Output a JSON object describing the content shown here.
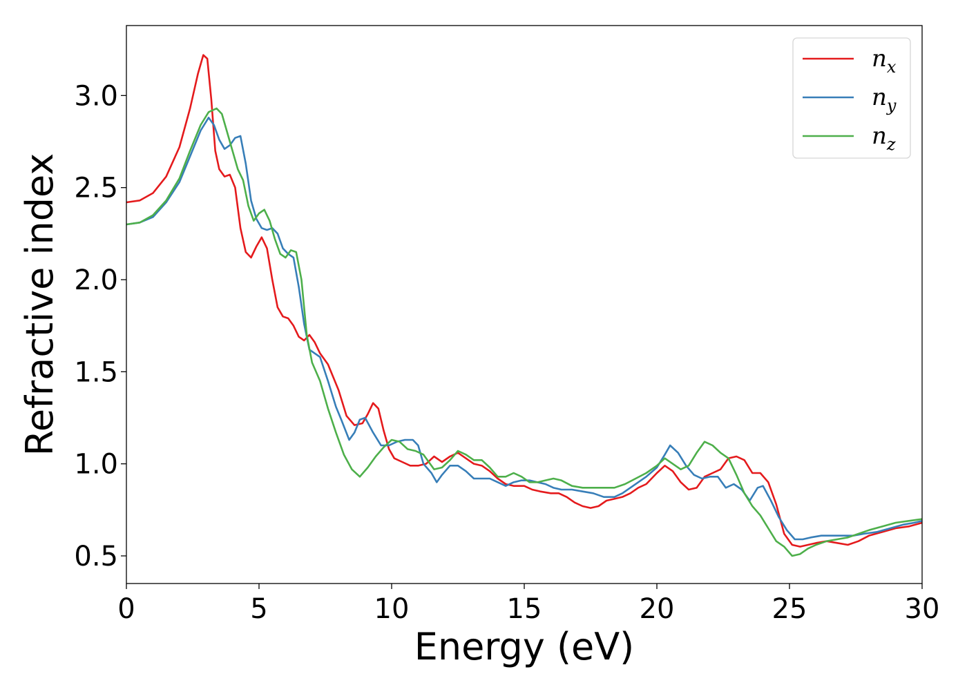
{
  "chart_data": {
    "type": "line",
    "title": "",
    "xlabel": "Energy (eV)",
    "ylabel": "Refractive index",
    "xlim": [
      0,
      30
    ],
    "ylim": [
      0.35,
      3.38
    ],
    "xticks": [
      0,
      5,
      10,
      15,
      20,
      25,
      30
    ],
    "xtick_labels": [
      "0",
      "5",
      "10",
      "15",
      "20",
      "25",
      "30"
    ],
    "yticks": [
      0.5,
      1.0,
      1.5,
      2.0,
      2.5,
      3.0
    ],
    "ytick_labels": [
      "0.5",
      "1.0",
      "1.5",
      "2.0",
      "2.5",
      "3.0"
    ],
    "grid": false,
    "legend_position": "top-right",
    "series": [
      {
        "name": "n_x",
        "label_base": "n",
        "label_sub": "x",
        "color": "#e41a1c",
        "points": [
          [
            0,
            2.42
          ],
          [
            0.5,
            2.43
          ],
          [
            1.0,
            2.47
          ],
          [
            1.5,
            2.56
          ],
          [
            2.0,
            2.72
          ],
          [
            2.4,
            2.93
          ],
          [
            2.7,
            3.12
          ],
          [
            2.9,
            3.22
          ],
          [
            3.05,
            3.2
          ],
          [
            3.2,
            2.98
          ],
          [
            3.35,
            2.7
          ],
          [
            3.5,
            2.6
          ],
          [
            3.7,
            2.56
          ],
          [
            3.9,
            2.57
          ],
          [
            4.1,
            2.5
          ],
          [
            4.3,
            2.28
          ],
          [
            4.5,
            2.15
          ],
          [
            4.7,
            2.12
          ],
          [
            4.9,
            2.18
          ],
          [
            5.1,
            2.23
          ],
          [
            5.3,
            2.17
          ],
          [
            5.5,
            2.0
          ],
          [
            5.7,
            1.85
          ],
          [
            5.9,
            1.8
          ],
          [
            6.1,
            1.79
          ],
          [
            6.3,
            1.75
          ],
          [
            6.5,
            1.69
          ],
          [
            6.7,
            1.67
          ],
          [
            6.9,
            1.7
          ],
          [
            7.1,
            1.66
          ],
          [
            7.3,
            1.6
          ],
          [
            7.6,
            1.54
          ],
          [
            8.0,
            1.4
          ],
          [
            8.3,
            1.26
          ],
          [
            8.6,
            1.21
          ],
          [
            8.9,
            1.22
          ],
          [
            9.1,
            1.27
          ],
          [
            9.3,
            1.33
          ],
          [
            9.5,
            1.3
          ],
          [
            9.7,
            1.18
          ],
          [
            9.9,
            1.08
          ],
          [
            10.1,
            1.03
          ],
          [
            10.4,
            1.01
          ],
          [
            10.7,
            0.99
          ],
          [
            11.0,
            0.99
          ],
          [
            11.3,
            1.0
          ],
          [
            11.6,
            1.04
          ],
          [
            11.9,
            1.01
          ],
          [
            12.2,
            1.04
          ],
          [
            12.5,
            1.06
          ],
          [
            12.8,
            1.03
          ],
          [
            13.1,
            1.0
          ],
          [
            13.4,
            0.99
          ],
          [
            13.7,
            0.96
          ],
          [
            14.0,
            0.92
          ],
          [
            14.3,
            0.89
          ],
          [
            14.6,
            0.88
          ],
          [
            15.0,
            0.88
          ],
          [
            15.3,
            0.86
          ],
          [
            15.6,
            0.85
          ],
          [
            16.0,
            0.84
          ],
          [
            16.3,
            0.84
          ],
          [
            16.6,
            0.82
          ],
          [
            16.9,
            0.79
          ],
          [
            17.2,
            0.77
          ],
          [
            17.5,
            0.76
          ],
          [
            17.8,
            0.77
          ],
          [
            18.1,
            0.8
          ],
          [
            18.4,
            0.81
          ],
          [
            18.7,
            0.82
          ],
          [
            19.0,
            0.84
          ],
          [
            19.3,
            0.87
          ],
          [
            19.6,
            0.89
          ],
          [
            20.0,
            0.95
          ],
          [
            20.3,
            0.99
          ],
          [
            20.6,
            0.96
          ],
          [
            20.9,
            0.9
          ],
          [
            21.2,
            0.86
          ],
          [
            21.5,
            0.87
          ],
          [
            21.8,
            0.93
          ],
          [
            22.1,
            0.95
          ],
          [
            22.4,
            0.97
          ],
          [
            22.7,
            1.03
          ],
          [
            23.0,
            1.04
          ],
          [
            23.3,
            1.02
          ],
          [
            23.6,
            0.95
          ],
          [
            23.9,
            0.95
          ],
          [
            24.2,
            0.9
          ],
          [
            24.5,
            0.78
          ],
          [
            24.8,
            0.62
          ],
          [
            25.1,
            0.56
          ],
          [
            25.4,
            0.55
          ],
          [
            25.7,
            0.56
          ],
          [
            26.0,
            0.57
          ],
          [
            26.4,
            0.58
          ],
          [
            26.8,
            0.57
          ],
          [
            27.2,
            0.56
          ],
          [
            27.6,
            0.58
          ],
          [
            28.0,
            0.61
          ],
          [
            28.5,
            0.63
          ],
          [
            29.0,
            0.65
          ],
          [
            29.5,
            0.66
          ],
          [
            30.0,
            0.68
          ]
        ]
      },
      {
        "name": "n_y",
        "label_base": "n",
        "label_sub": "y",
        "color": "#377eb8",
        "points": [
          [
            0,
            2.3
          ],
          [
            0.5,
            2.31
          ],
          [
            1.0,
            2.34
          ],
          [
            1.5,
            2.42
          ],
          [
            2.0,
            2.53
          ],
          [
            2.4,
            2.67
          ],
          [
            2.8,
            2.81
          ],
          [
            3.1,
            2.88
          ],
          [
            3.3,
            2.84
          ],
          [
            3.5,
            2.76
          ],
          [
            3.7,
            2.71
          ],
          [
            3.9,
            2.73
          ],
          [
            4.1,
            2.77
          ],
          [
            4.3,
            2.78
          ],
          [
            4.5,
            2.63
          ],
          [
            4.7,
            2.43
          ],
          [
            4.9,
            2.33
          ],
          [
            5.1,
            2.28
          ],
          [
            5.3,
            2.27
          ],
          [
            5.5,
            2.28
          ],
          [
            5.7,
            2.25
          ],
          [
            5.9,
            2.17
          ],
          [
            6.1,
            2.14
          ],
          [
            6.3,
            2.12
          ],
          [
            6.5,
            1.96
          ],
          [
            6.7,
            1.76
          ],
          [
            6.9,
            1.62
          ],
          [
            7.1,
            1.6
          ],
          [
            7.3,
            1.58
          ],
          [
            7.6,
            1.45
          ],
          [
            7.9,
            1.31
          ],
          [
            8.1,
            1.24
          ],
          [
            8.4,
            1.13
          ],
          [
            8.6,
            1.17
          ],
          [
            8.8,
            1.24
          ],
          [
            9.0,
            1.25
          ],
          [
            9.3,
            1.17
          ],
          [
            9.6,
            1.1
          ],
          [
            9.9,
            1.1
          ],
          [
            10.2,
            1.12
          ],
          [
            10.5,
            1.13
          ],
          [
            10.8,
            1.13
          ],
          [
            11.0,
            1.1
          ],
          [
            11.2,
            1.0
          ],
          [
            11.5,
            0.95
          ],
          [
            11.7,
            0.9
          ],
          [
            11.9,
            0.94
          ],
          [
            12.2,
            0.99
          ],
          [
            12.5,
            0.99
          ],
          [
            12.8,
            0.96
          ],
          [
            13.1,
            0.92
          ],
          [
            13.4,
            0.92
          ],
          [
            13.7,
            0.92
          ],
          [
            14.0,
            0.9
          ],
          [
            14.3,
            0.88
          ],
          [
            14.6,
            0.9
          ],
          [
            14.9,
            0.91
          ],
          [
            15.2,
            0.91
          ],
          [
            15.5,
            0.9
          ],
          [
            15.8,
            0.89
          ],
          [
            16.1,
            0.87
          ],
          [
            16.4,
            0.86
          ],
          [
            16.8,
            0.86
          ],
          [
            17.2,
            0.85
          ],
          [
            17.6,
            0.84
          ],
          [
            18.0,
            0.82
          ],
          [
            18.4,
            0.82
          ],
          [
            18.7,
            0.84
          ],
          [
            19.0,
            0.87
          ],
          [
            19.3,
            0.9
          ],
          [
            19.6,
            0.93
          ],
          [
            20.0,
            0.98
          ],
          [
            20.3,
            1.05
          ],
          [
            20.5,
            1.1
          ],
          [
            20.8,
            1.06
          ],
          [
            21.1,
            0.99
          ],
          [
            21.4,
            0.94
          ],
          [
            21.7,
            0.92
          ],
          [
            22.0,
            0.93
          ],
          [
            22.3,
            0.93
          ],
          [
            22.6,
            0.87
          ],
          [
            22.9,
            0.89
          ],
          [
            23.2,
            0.86
          ],
          [
            23.5,
            0.8
          ],
          [
            23.8,
            0.87
          ],
          [
            24.0,
            0.88
          ],
          [
            24.3,
            0.8
          ],
          [
            24.6,
            0.71
          ],
          [
            24.9,
            0.64
          ],
          [
            25.2,
            0.59
          ],
          [
            25.5,
            0.59
          ],
          [
            25.8,
            0.6
          ],
          [
            26.2,
            0.61
          ],
          [
            26.6,
            0.61
          ],
          [
            27.0,
            0.61
          ],
          [
            27.4,
            0.61
          ],
          [
            27.8,
            0.62
          ],
          [
            28.3,
            0.63
          ],
          [
            28.8,
            0.65
          ],
          [
            29.3,
            0.67
          ],
          [
            29.7,
            0.68
          ],
          [
            30.0,
            0.69
          ]
        ]
      },
      {
        "name": "n_z",
        "label_base": "n",
        "label_sub": "z",
        "color": "#4daf4a",
        "points": [
          [
            0,
            2.3
          ],
          [
            0.5,
            2.31
          ],
          [
            1.0,
            2.35
          ],
          [
            1.5,
            2.43
          ],
          [
            2.0,
            2.55
          ],
          [
            2.4,
            2.7
          ],
          [
            2.8,
            2.84
          ],
          [
            3.1,
            2.91
          ],
          [
            3.4,
            2.93
          ],
          [
            3.6,
            2.9
          ],
          [
            3.8,
            2.8
          ],
          [
            4.0,
            2.7
          ],
          [
            4.2,
            2.6
          ],
          [
            4.4,
            2.54
          ],
          [
            4.6,
            2.4
          ],
          [
            4.8,
            2.32
          ],
          [
            5.0,
            2.36
          ],
          [
            5.2,
            2.38
          ],
          [
            5.4,
            2.32
          ],
          [
            5.6,
            2.22
          ],
          [
            5.8,
            2.14
          ],
          [
            6.0,
            2.12
          ],
          [
            6.2,
            2.16
          ],
          [
            6.4,
            2.15
          ],
          [
            6.6,
            2.0
          ],
          [
            6.8,
            1.7
          ],
          [
            7.0,
            1.55
          ],
          [
            7.3,
            1.45
          ],
          [
            7.6,
            1.3
          ],
          [
            7.9,
            1.17
          ],
          [
            8.2,
            1.05
          ],
          [
            8.5,
            0.97
          ],
          [
            8.8,
            0.93
          ],
          [
            9.1,
            0.98
          ],
          [
            9.4,
            1.04
          ],
          [
            9.7,
            1.09
          ],
          [
            10.0,
            1.13
          ],
          [
            10.3,
            1.12
          ],
          [
            10.6,
            1.08
          ],
          [
            10.9,
            1.07
          ],
          [
            11.2,
            1.05
          ],
          [
            11.6,
            0.97
          ],
          [
            11.9,
            0.98
          ],
          [
            12.2,
            1.02
          ],
          [
            12.5,
            1.07
          ],
          [
            12.8,
            1.05
          ],
          [
            13.1,
            1.02
          ],
          [
            13.4,
            1.02
          ],
          [
            13.7,
            0.98
          ],
          [
            14.0,
            0.93
          ],
          [
            14.3,
            0.93
          ],
          [
            14.6,
            0.95
          ],
          [
            14.9,
            0.93
          ],
          [
            15.2,
            0.9
          ],
          [
            15.5,
            0.9
          ],
          [
            15.8,
            0.91
          ],
          [
            16.1,
            0.92
          ],
          [
            16.4,
            0.91
          ],
          [
            16.8,
            0.88
          ],
          [
            17.2,
            0.87
          ],
          [
            17.6,
            0.87
          ],
          [
            18.0,
            0.87
          ],
          [
            18.4,
            0.87
          ],
          [
            18.8,
            0.89
          ],
          [
            19.2,
            0.92
          ],
          [
            19.6,
            0.95
          ],
          [
            20.0,
            0.99
          ],
          [
            20.3,
            1.03
          ],
          [
            20.6,
            1.0
          ],
          [
            20.9,
            0.97
          ],
          [
            21.2,
            0.99
          ],
          [
            21.5,
            1.06
          ],
          [
            21.8,
            1.12
          ],
          [
            22.1,
            1.1
          ],
          [
            22.4,
            1.06
          ],
          [
            22.7,
            1.03
          ],
          [
            23.0,
            0.94
          ],
          [
            23.3,
            0.84
          ],
          [
            23.6,
            0.77
          ],
          [
            23.9,
            0.72
          ],
          [
            24.2,
            0.65
          ],
          [
            24.5,
            0.58
          ],
          [
            24.8,
            0.55
          ],
          [
            25.1,
            0.5
          ],
          [
            25.4,
            0.51
          ],
          [
            25.7,
            0.54
          ],
          [
            26.0,
            0.56
          ],
          [
            26.4,
            0.58
          ],
          [
            26.8,
            0.59
          ],
          [
            27.2,
            0.6
          ],
          [
            27.6,
            0.62
          ],
          [
            28.0,
            0.64
          ],
          [
            28.5,
            0.66
          ],
          [
            29.0,
            0.68
          ],
          [
            29.5,
            0.69
          ],
          [
            30.0,
            0.7
          ]
        ]
      }
    ]
  }
}
